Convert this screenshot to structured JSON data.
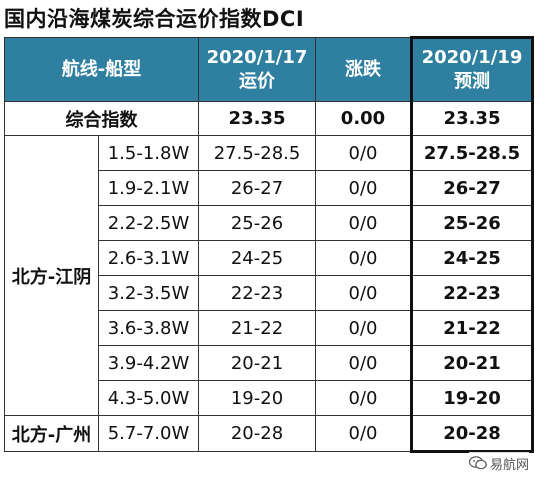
{
  "title": "国内沿海煤炭综合运价指数DCI",
  "header": {
    "route": "航线-船型",
    "date1": "2020/1/17",
    "price": "运价",
    "change": "涨跌",
    "date2": "2020/1/19",
    "forecast": "预测"
  },
  "composite": {
    "label": "综合指数",
    "price": "23.35",
    "change": "0.00",
    "forecast": "23.35"
  },
  "regions": [
    {
      "name": "北方-江阴",
      "rows": [
        {
          "ship": "1.5-1.8W",
          "price": "27.5-28.5",
          "change": "0/0",
          "forecast": "27.5-28.5"
        },
        {
          "ship": "1.9-2.1W",
          "price": "26-27",
          "change": "0/0",
          "forecast": "26-27"
        },
        {
          "ship": "2.2-2.5W",
          "price": "25-26",
          "change": "0/0",
          "forecast": "25-26"
        },
        {
          "ship": "2.6-3.1W",
          "price": "24-25",
          "change": "0/0",
          "forecast": "24-25"
        },
        {
          "ship": "3.2-3.5W",
          "price": "22-23",
          "change": "0/0",
          "forecast": "22-23"
        },
        {
          "ship": "3.6-3.8W",
          "price": "21-22",
          "change": "0/0",
          "forecast": "21-22"
        },
        {
          "ship": "3.9-4.2W",
          "price": "20-21",
          "change": "0/0",
          "forecast": "20-21"
        },
        {
          "ship": "4.3-5.0W",
          "price": "19-20",
          "change": "0/0",
          "forecast": "19-20"
        }
      ]
    },
    {
      "name": "北方-广州",
      "rows": [
        {
          "ship": "5.7-7.0W",
          "price": "20-28",
          "change": "0/0",
          "forecast": "20-28"
        }
      ]
    }
  ],
  "watermark": {
    "text": "易航网",
    "icon": "wechat-icon"
  }
}
